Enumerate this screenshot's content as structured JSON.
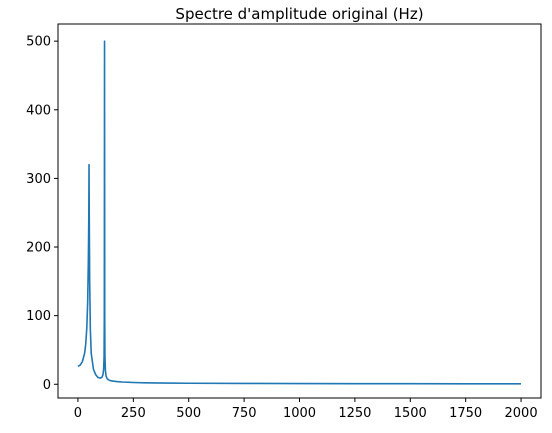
{
  "chart_data": {
    "type": "line",
    "title": "Spectre d'amplitude original (Hz)",
    "xlabel": "",
    "ylabel": "",
    "xlim": [
      -90,
      2090
    ],
    "ylim": [
      -20,
      525
    ],
    "x_ticks": [
      0,
      250,
      500,
      750,
      1000,
      1250,
      1500,
      1750,
      2000
    ],
    "x_tick_labels": [
      "0",
      "250",
      "500",
      "750",
      "1000",
      "1250",
      "1500",
      "1750",
      "2000"
    ],
    "y_ticks": [
      0,
      100,
      200,
      300,
      400,
      500
    ],
    "y_tick_labels": [
      "0",
      "100",
      "200",
      "300",
      "400",
      "500"
    ],
    "grid": false,
    "legend": "none",
    "line_color": "#1f77b4",
    "series": [
      {
        "x": [
          0,
          10,
          20,
          30,
          35,
          40,
          44,
          47,
          49,
          50,
          51,
          53,
          56,
          60,
          70,
          80,
          90,
          100,
          108,
          113,
          116,
          118,
          119,
          120,
          121,
          122,
          124,
          127,
          132,
          140,
          150,
          175,
          200,
          250,
          300,
          400,
          500,
          750,
          1000,
          1250,
          1500,
          1750,
          2000
        ],
        "values": [
          26,
          28,
          33,
          45,
          58,
          82,
          120,
          180,
          245,
          320,
          250,
          150,
          80,
          45,
          22,
          14,
          10,
          9,
          10,
          14,
          22,
          40,
          100,
          500,
          90,
          40,
          20,
          12,
          8,
          6,
          5,
          4,
          3.3,
          2.6,
          2.2,
          1.8,
          1.5,
          1.2,
          1,
          0.9,
          0.8,
          0.7,
          0.7
        ]
      }
    ]
  }
}
